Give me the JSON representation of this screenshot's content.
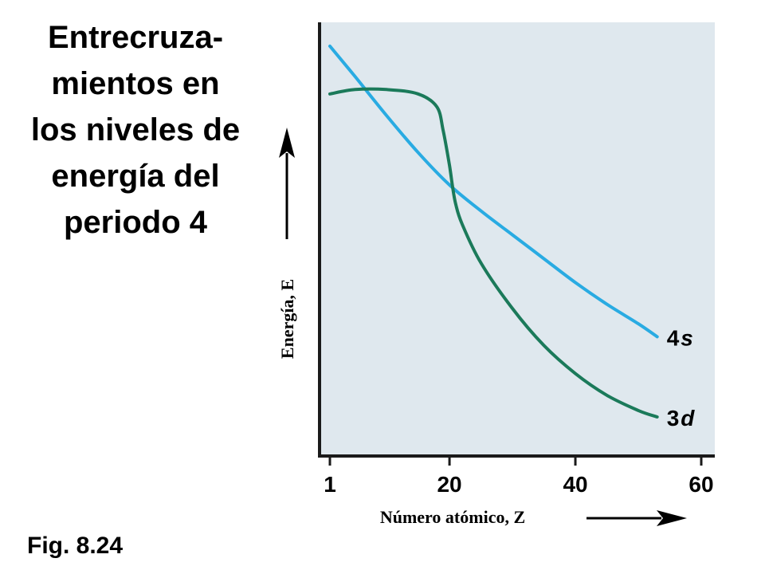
{
  "title_lines": [
    "Entrecruza-",
    "mientos en",
    "los niveles de",
    "energía del",
    "periodo 4"
  ],
  "figure_label": "Fig. 8.24",
  "colors": {
    "plot_background": "#dfe8ee",
    "axis": "#1a1a1a",
    "series_4s": "#29abe2",
    "series_3d": "#1b7a5a"
  },
  "chart_data": {
    "type": "line",
    "xlabel": "Número atómico, Z",
    "ylabel": "Energía, E",
    "xlim": [
      1,
      60
    ],
    "ylim": [
      0,
      100
    ],
    "xticks": [
      1,
      20,
      40,
      60
    ],
    "y_tick_labels": "none",
    "grid": false,
    "series": [
      {
        "name": "4s",
        "name_lead": "4",
        "name_sub": "s",
        "x": [
          1,
          5,
          10,
          15,
          20,
          25,
          30,
          35,
          40,
          45,
          50,
          53
        ],
        "y": [
          94.5,
          87.5,
          78.5,
          70,
          62.5,
          56.5,
          51,
          45.5,
          40,
          35,
          30.5,
          27.5
        ]
      },
      {
        "name": "3d",
        "name_lead": "3",
        "name_sub": "d",
        "x": [
          1,
          5,
          10,
          15,
          18,
          19,
          20,
          20.5,
          21,
          22,
          25,
          30,
          35,
          40,
          45,
          50,
          53
        ],
        "y": [
          83.5,
          84.5,
          84.5,
          83.5,
          80.5,
          75,
          67,
          62,
          58,
          53.5,
          44.5,
          34,
          25.5,
          19,
          14,
          10.5,
          9
        ]
      }
    ]
  }
}
